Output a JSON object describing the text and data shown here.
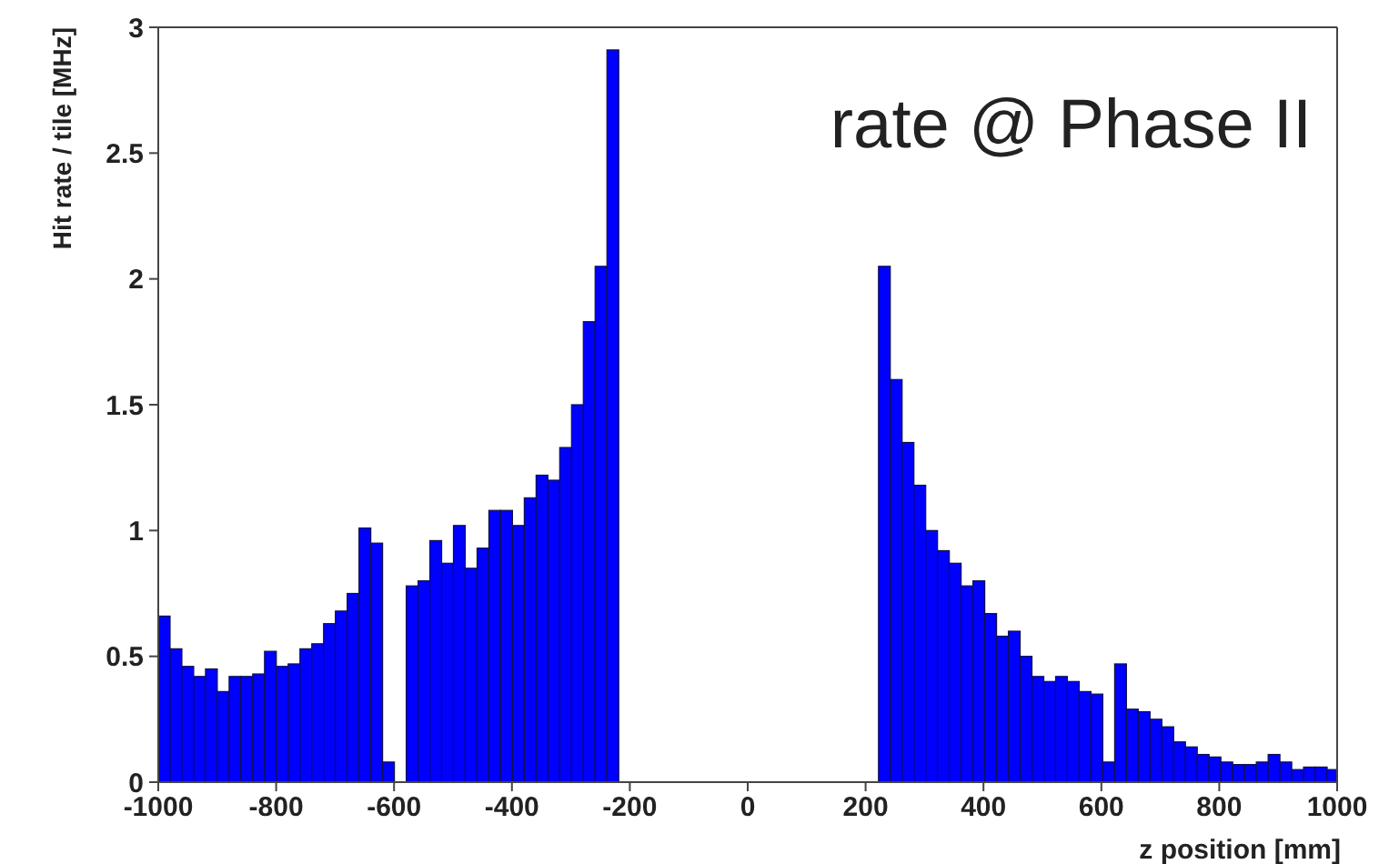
{
  "chart_data": {
    "type": "histogram",
    "xlabel": "z position [mm]",
    "ylabel": "Hit rate / tile [MHz]",
    "annotations": [
      "rate @ Phase II"
    ],
    "bins": [
      -1000,
      -980,
      -960,
      -940,
      -920,
      -900,
      -880,
      -860,
      -840,
      -820,
      -800,
      -780,
      -760,
      -740,
      -720,
      -700,
      -680,
      -660,
      -640,
      -620,
      -600,
      -580,
      -560,
      -540,
      -520,
      -500,
      -480,
      -460,
      -440,
      -420,
      -400,
      -380,
      -360,
      -340,
      -320,
      -300,
      -280,
      -260,
      -240,
      -220,
      -200,
      -180,
      -160,
      -140,
      -120,
      -100,
      -80,
      -60,
      -40,
      -20,
      0,
      20,
      40,
      60,
      80,
      100,
      120,
      140,
      160,
      180,
      200,
      220,
      240,
      260,
      280,
      300,
      320,
      340,
      360,
      380,
      400,
      420,
      440,
      460,
      480,
      500,
      520,
      540,
      560,
      580,
      600,
      620,
      640,
      660,
      680,
      700,
      720,
      740,
      760,
      780,
      800,
      820,
      840,
      860,
      880,
      900,
      920,
      940,
      960,
      980,
      1000
    ],
    "values": [
      0.66,
      0.53,
      0.46,
      0.42,
      0.45,
      0.36,
      0.42,
      0.42,
      0.43,
      0.52,
      0.46,
      0.47,
      0.53,
      0.55,
      0.63,
      0.68,
      0.75,
      1.01,
      0.95,
      0.08,
      0,
      0.78,
      0.8,
      0.96,
      0.87,
      1.02,
      0.85,
      0.93,
      1.08,
      1.08,
      1.02,
      1.13,
      1.22,
      1.2,
      1.33,
      1.5,
      1.83,
      2.05,
      2.91,
      0,
      0,
      0,
      0,
      0,
      0,
      0,
      0,
      0,
      0,
      0,
      0,
      0,
      0,
      0,
      0,
      0,
      0,
      0,
      0,
      0,
      0,
      2.05,
      1.6,
      1.35,
      1.18,
      1.0,
      0.92,
      0.87,
      0.78,
      0.8,
      0.67,
      0.58,
      0.6,
      0.5,
      0.42,
      0.4,
      0.42,
      0.4,
      0.36,
      0.35,
      0.08,
      0.47,
      0.29,
      0.28,
      0.25,
      0.22,
      0.16,
      0.14,
      0.11,
      0.1,
      0.08,
      0.07,
      0.07,
      0.08,
      0.11,
      0.08,
      0.05,
      0.06,
      0.06,
      0.05
    ],
    "color": "#0000ff",
    "xlim": [
      -1000,
      1000
    ],
    "xticks": [
      -1000,
      -800,
      -600,
      -400,
      -200,
      0,
      200,
      400,
      600,
      800,
      1000
    ],
    "ylim": [
      0,
      3
    ],
    "yticks": [
      0,
      0.5,
      1,
      1.5,
      2,
      2.5,
      3
    ],
    "grid": false
  }
}
